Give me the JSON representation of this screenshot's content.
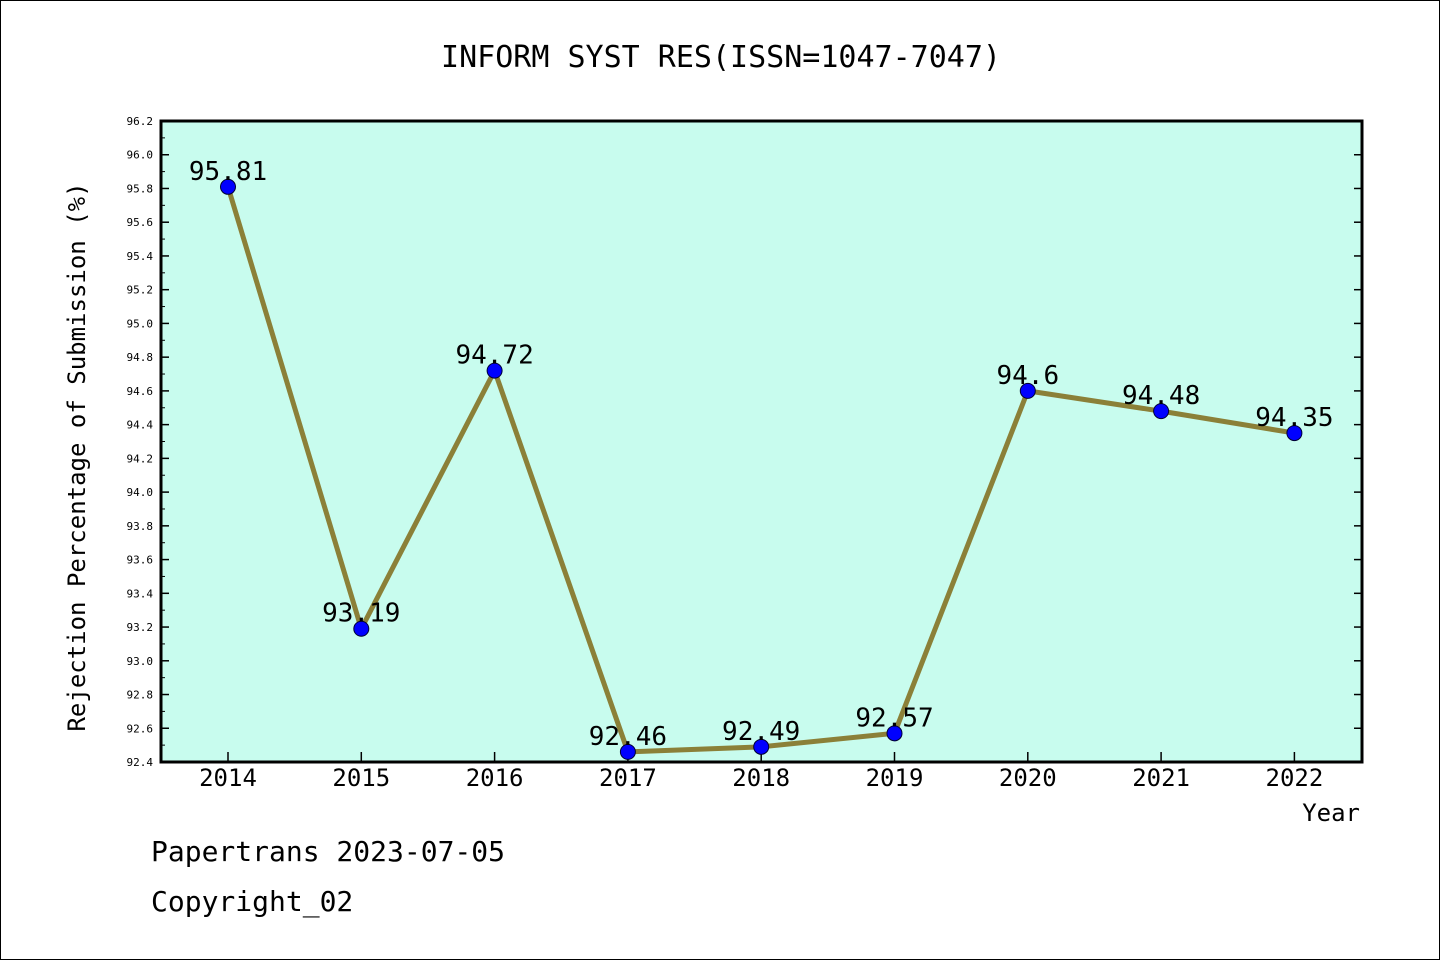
{
  "chart_data": {
    "type": "line",
    "title": "INFORM SYST RES(ISSN=1047-7047)",
    "xlabel": "Year",
    "ylabel": "Rejection Percentage of Submission (%)",
    "categories": [
      "2014",
      "2015",
      "2016",
      "2017",
      "2018",
      "2019",
      "2020",
      "2021",
      "2022"
    ],
    "values": [
      95.81,
      93.19,
      94.72,
      92.46,
      92.49,
      92.57,
      94.6,
      94.48,
      94.35
    ],
    "data_labels": [
      "95.81",
      "93.19",
      "94.72",
      "92.46",
      "92.49",
      "92.57",
      "94.6",
      "94.48",
      "94.35"
    ],
    "ylim": [
      92.4,
      96.2
    ],
    "yticks": [
      "92.4",
      "92.6",
      "92.8",
      "93.0",
      "93.2",
      "93.4",
      "93.6",
      "93.8",
      "94.0",
      "94.2",
      "94.4",
      "94.6",
      "94.8",
      "95.0",
      "95.2",
      "95.4",
      "95.6",
      "95.8",
      "96.0",
      "96.2"
    ],
    "grid": false,
    "colors": {
      "plot_background": "#c8fcee",
      "line": "#8b8038",
      "marker": "#0000ff"
    }
  },
  "footer": {
    "line1": "Papertrans 2023-07-05",
    "line2": "Copyright_02"
  }
}
